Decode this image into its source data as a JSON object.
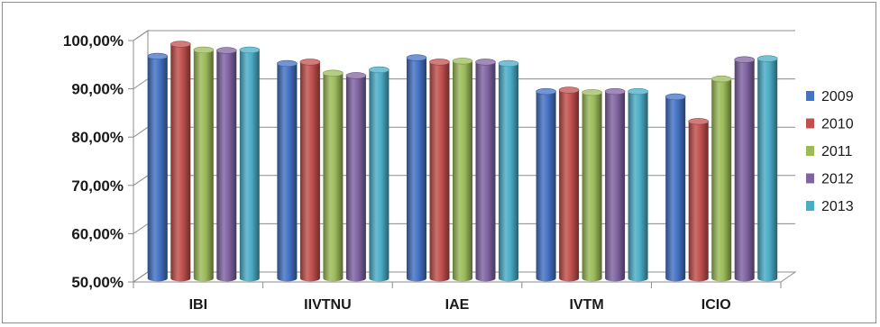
{
  "chart_data": {
    "type": "bar",
    "style": "3d-cylinder",
    "categories": [
      "IBI",
      "IIVTNU",
      "IAE",
      "IVTM",
      "ICIO"
    ],
    "series": [
      {
        "name": "2009",
        "color": "#4472C4",
        "values": [
          96.0,
          94.5,
          95.7,
          88.7,
          87.6
        ]
      },
      {
        "name": "2010",
        "color": "#C0504D",
        "values": [
          98.5,
          94.8,
          94.8,
          89.0,
          82.5
        ]
      },
      {
        "name": "2011",
        "color": "#9BBB59",
        "values": [
          97.3,
          92.5,
          95.0,
          88.5,
          91.3
        ]
      },
      {
        "name": "2012",
        "color": "#8064A2",
        "values": [
          97.2,
          92.0,
          94.8,
          88.7,
          95.3
        ]
      },
      {
        "name": "2013",
        "color": "#4BACC6",
        "values": [
          97.3,
          93.2,
          94.5,
          88.7,
          95.5
        ]
      }
    ],
    "yticks": [
      "50,00%",
      "60,00%",
      "70,00%",
      "80,00%",
      "90,00%",
      "100,00%"
    ],
    "ylim": [
      50,
      100
    ],
    "grid": true,
    "legend": "right"
  }
}
